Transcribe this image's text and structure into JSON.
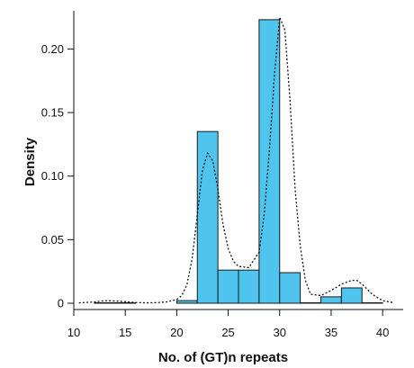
{
  "chart_data": {
    "type": "bar",
    "subtype": "histogram",
    "xlabel": "No. of (GT)n repeats",
    "ylabel": "Density",
    "xlim": [
      10,
      42
    ],
    "ylim": [
      0,
      0.235
    ],
    "x_ticks": [
      10,
      15,
      20,
      25,
      30,
      35,
      40
    ],
    "y_ticks": [
      0,
      0.05,
      0.1,
      0.15,
      0.2
    ],
    "y_tick_labels": [
      "0",
      "0.05",
      "0.10",
      "0.15",
      "0.20"
    ],
    "bin_width": 2,
    "bins": [
      {
        "start": 12,
        "end": 14,
        "value": 0.002
      },
      {
        "start": 14,
        "end": 16,
        "value": 0.001
      },
      {
        "start": 20,
        "end": 22,
        "value": 0.007
      },
      {
        "start": 22,
        "end": 24,
        "value": 0.14
      },
      {
        "start": 24,
        "end": 26,
        "value": 0.031
      },
      {
        "start": 26,
        "end": 28,
        "value": 0.031
      },
      {
        "start": 28,
        "end": 30,
        "value": 0.228
      },
      {
        "start": 30,
        "end": 32,
        "value": 0.029
      },
      {
        "start": 32,
        "end": 34,
        "value": 0.003
      },
      {
        "start": 34,
        "end": 36,
        "value": 0.01
      },
      {
        "start": 36,
        "end": 38,
        "value": 0.017
      },
      {
        "start": 38,
        "end": 40,
        "value": 0.004
      }
    ],
    "density_curve": {
      "style": "dotted",
      "x": [
        10.5,
        12,
        13,
        14,
        15,
        16,
        17,
        18,
        19,
        20,
        20.5,
        21,
        21.5,
        22,
        22.5,
        23,
        23.5,
        24,
        24.5,
        25,
        25.5,
        26,
        27,
        28,
        28.5,
        29,
        29.5,
        30,
        30.5,
        31,
        31.5,
        32,
        32.5,
        33,
        34,
        35,
        36,
        37,
        37.5,
        38,
        39,
        40,
        41
      ],
      "y": [
        0.0003,
        0.001,
        0.002,
        0.0018,
        0.0012,
        0.0006,
        0.0003,
        0.0004,
        0.001,
        0.003,
        0.006,
        0.015,
        0.035,
        0.07,
        0.105,
        0.118,
        0.112,
        0.09,
        0.062,
        0.043,
        0.033,
        0.029,
        0.028,
        0.04,
        0.07,
        0.12,
        0.18,
        0.225,
        0.215,
        0.16,
        0.09,
        0.045,
        0.018,
        0.007,
        0.006,
        0.01,
        0.015,
        0.018,
        0.018,
        0.015,
        0.007,
        0.002,
        0.0005
      ]
    },
    "colors": {
      "bar_fill": "#4fc4ef",
      "bar_stroke": "#1a1a1a",
      "curve": "#111111",
      "axis": "#111111"
    },
    "grid": false
  }
}
